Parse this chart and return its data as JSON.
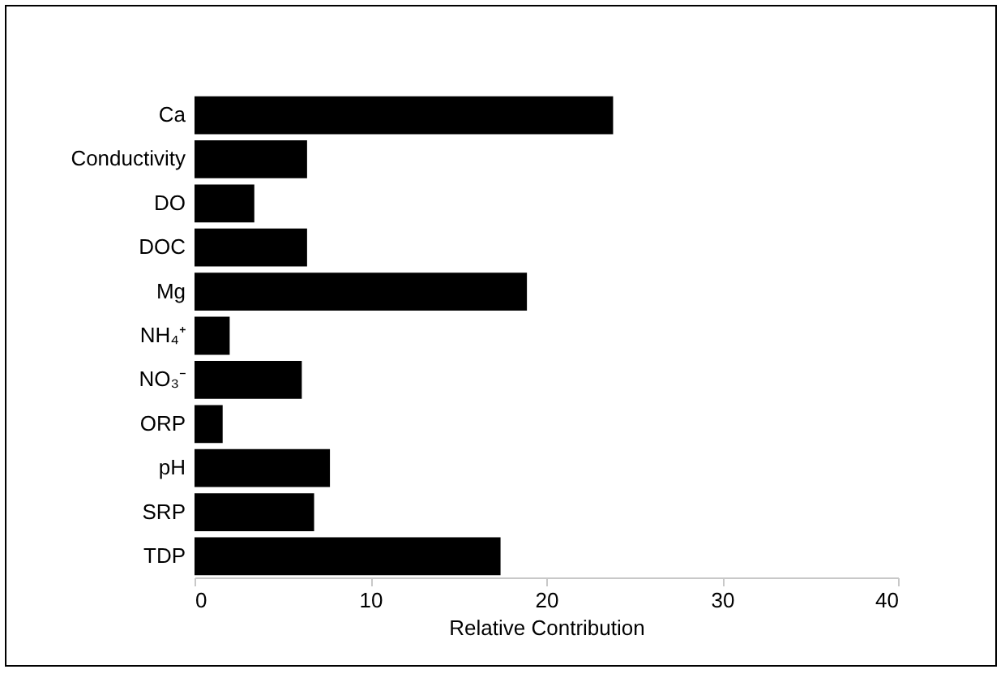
{
  "chart_data": {
    "type": "bar",
    "orientation": "horizontal",
    "categories": [
      "Ca",
      "Conductivity",
      "DO",
      "DOC",
      "Mg",
      "NH₄⁺",
      "NO₃⁻",
      "ORP",
      "pH",
      "SRP",
      "TDP"
    ],
    "values": [
      23.8,
      6.4,
      3.4,
      6.4,
      18.9,
      2.0,
      6.1,
      1.6,
      7.7,
      6.8,
      17.4
    ],
    "color": "#000000",
    "xlabel": "Relative Contribution",
    "xlim": [
      0,
      40
    ],
    "xticks": [
      0,
      10,
      20,
      30,
      40
    ],
    "grid": false
  }
}
